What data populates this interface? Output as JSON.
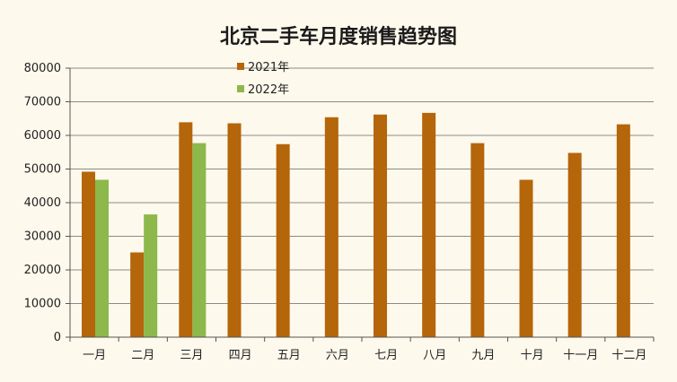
{
  "chart_data": {
    "type": "bar",
    "title": "北京二手车月度销售趋势图",
    "xlabel": "",
    "ylabel": "",
    "categories": [
      "一月",
      "二月",
      "三月",
      "四月",
      "五月",
      "六月",
      "七月",
      "八月",
      "九月",
      "十月",
      "十一月",
      "十二月"
    ],
    "series": [
      {
        "name": "2021年",
        "color": "#b5650a",
        "values": [
          49200,
          25200,
          63900,
          63600,
          57400,
          65400,
          66200,
          66700,
          57700,
          46800,
          54800,
          63300
        ]
      },
      {
        "name": "2022年",
        "color": "#8db84b",
        "values": [
          46800,
          36500,
          57700,
          null,
          null,
          null,
          null,
          null,
          null,
          null,
          null,
          null
        ]
      }
    ],
    "ylim": [
      0,
      80000
    ],
    "yticks": [
      "0",
      "10000",
      "20000",
      "30000",
      "40000",
      "50000",
      "60000",
      "70000",
      "80000"
    ],
    "grid": true,
    "legend_position": "top-left"
  }
}
